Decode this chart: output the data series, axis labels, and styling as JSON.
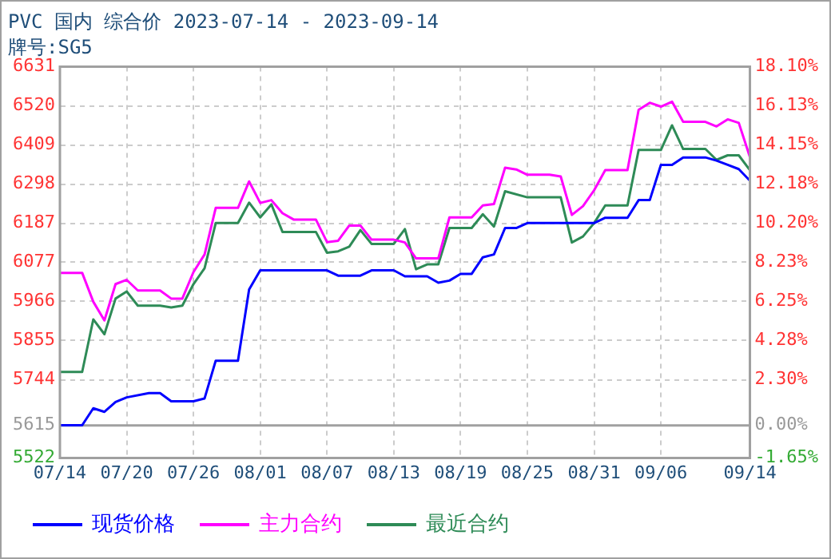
{
  "chart_data": {
    "type": "line",
    "title": "PVC 国内 综合价 2023-07-14 - 2023-09-14",
    "subtitle": "牌号:SG5",
    "xlim": [
      "2023-07-14",
      "2023-09-14"
    ],
    "xticks": [
      {
        "value": "2023-07-14",
        "label": "07/14"
      },
      {
        "value": "2023-07-20",
        "label": "07/20"
      },
      {
        "value": "2023-07-26",
        "label": "07/26"
      },
      {
        "value": "2023-08-01",
        "label": "08/01"
      },
      {
        "value": "2023-08-07",
        "label": "08/07"
      },
      {
        "value": "2023-08-13",
        "label": "08/13"
      },
      {
        "value": "2023-08-19",
        "label": "08/19"
      },
      {
        "value": "2023-08-25",
        "label": "08/25"
      },
      {
        "value": "2023-08-31",
        "label": "08/31"
      },
      {
        "value": "2023-09-06",
        "label": "09/06"
      },
      {
        "value": "2023-09-14",
        "label": "09/14"
      }
    ],
    "ylim": [
      5522,
      6631
    ],
    "yticks": [
      5522,
      5615,
      5744,
      5855,
      5966,
      6077,
      6187,
      6298,
      6409,
      6520,
      6631
    ],
    "y2lim": [
      -1.65,
      18.1
    ],
    "y2ticks": [
      {
        "value": -1.65,
        "label": "-1.65%"
      },
      {
        "value": 0,
        "label": "0.00%"
      },
      {
        "value": 2.3,
        "label": "2.30%"
      },
      {
        "value": 4.28,
        "label": "4.28%"
      },
      {
        "value": 6.25,
        "label": "6.25%"
      },
      {
        "value": 8.23,
        "label": "8.23%"
      },
      {
        "value": 10.2,
        "label": "10.20%"
      },
      {
        "value": 12.18,
        "label": "12.18%"
      },
      {
        "value": 14.15,
        "label": "14.15%"
      },
      {
        "value": 16.13,
        "label": "16.13%"
      },
      {
        "value": 18.1,
        "label": "18.10%"
      }
    ],
    "ref_lines": [
      {
        "axis": "y2",
        "value": 0,
        "color": "#a0a0a0"
      }
    ],
    "grid": true,
    "legend": "bottom",
    "marker": "none",
    "line_style": "solid",
    "series": [
      {
        "name": "现货价格",
        "color": "#0000ff",
        "x": [
          "2023-07-14",
          "2023-07-16",
          "2023-07-17",
          "2023-07-18",
          "2023-07-19",
          "2023-07-20",
          "2023-07-22",
          "2023-07-23",
          "2023-07-24",
          "2023-07-26",
          "2023-07-27",
          "2023-07-28",
          "2023-07-30",
          "2023-07-31",
          "2023-08-01",
          "2023-08-07",
          "2023-08-08",
          "2023-08-10",
          "2023-08-11",
          "2023-08-13",
          "2023-08-14",
          "2023-08-16",
          "2023-08-17",
          "2023-08-18",
          "2023-08-19",
          "2023-08-20",
          "2023-08-21",
          "2023-08-22",
          "2023-08-23",
          "2023-08-24",
          "2023-08-25",
          "2023-08-31",
          "2023-09-01",
          "2023-09-03",
          "2023-09-04",
          "2023-09-05",
          "2023-09-06",
          "2023-09-07",
          "2023-09-08",
          "2023-09-10",
          "2023-09-11",
          "2023-09-12",
          "2023-09-13",
          "2023-09-14"
        ],
        "values": [
          5615,
          5615,
          5663,
          5653,
          5681,
          5694,
          5706,
          5706,
          5683,
          5683,
          5691,
          5798,
          5798,
          6000,
          6054,
          6054,
          6039,
          6039,
          6054,
          6054,
          6037,
          6037,
          6019,
          6025,
          6044,
          6044,
          6091,
          6099,
          6174,
          6174,
          6188,
          6188,
          6203,
          6203,
          6253,
          6253,
          6353,
          6353,
          6374,
          6374,
          6365,
          6353,
          6341,
          6308
        ]
      },
      {
        "name": "主力合约",
        "color": "#ff00ff",
        "x": [
          "2023-07-14",
          "2023-07-16",
          "2023-07-17",
          "2023-07-18",
          "2023-07-19",
          "2023-07-20",
          "2023-07-21",
          "2023-07-23",
          "2023-07-24",
          "2023-07-25",
          "2023-07-26",
          "2023-07-27",
          "2023-07-28",
          "2023-07-30",
          "2023-07-31",
          "2023-08-01",
          "2023-08-02",
          "2023-08-03",
          "2023-08-04",
          "2023-08-06",
          "2023-08-07",
          "2023-08-08",
          "2023-08-09",
          "2023-08-10",
          "2023-08-11",
          "2023-08-13",
          "2023-08-14",
          "2023-08-15",
          "2023-08-17",
          "2023-08-18",
          "2023-08-20",
          "2023-08-21",
          "2023-08-22",
          "2023-08-23",
          "2023-08-24",
          "2023-08-25",
          "2023-08-27",
          "2023-08-28",
          "2023-08-29",
          "2023-08-30",
          "2023-08-31",
          "2023-09-01",
          "2023-09-03",
          "2023-09-04",
          "2023-09-05",
          "2023-09-06",
          "2023-09-07",
          "2023-09-08",
          "2023-09-10",
          "2023-09-11",
          "2023-09-12",
          "2023-09-13",
          "2023-09-14"
        ],
        "values": [
          6047,
          6047,
          5965,
          5912,
          6015,
          6027,
          5997,
          5997,
          5974,
          5974,
          6049,
          6099,
          6231,
          6231,
          6306,
          6245,
          6253,
          6216,
          6198,
          6198,
          6134,
          6138,
          6181,
          6181,
          6141,
          6141,
          6133,
          6088,
          6088,
          6204,
          6204,
          6238,
          6242,
          6345,
          6340,
          6325,
          6325,
          6320,
          6211,
          6236,
          6281,
          6338,
          6338,
          6509,
          6529,
          6518,
          6532,
          6475,
          6475,
          6462,
          6482,
          6472,
          6375
        ]
      },
      {
        "name": "最近合约",
        "color": "#2e8b57",
        "x": [
          "2023-07-14",
          "2023-07-16",
          "2023-07-17",
          "2023-07-18",
          "2023-07-19",
          "2023-07-20",
          "2023-07-21",
          "2023-07-23",
          "2023-07-24",
          "2023-07-25",
          "2023-07-26",
          "2023-07-27",
          "2023-07-28",
          "2023-07-30",
          "2023-07-31",
          "2023-08-01",
          "2023-08-02",
          "2023-08-03",
          "2023-08-06",
          "2023-08-07",
          "2023-08-08",
          "2023-08-09",
          "2023-08-10",
          "2023-08-11",
          "2023-08-13",
          "2023-08-14",
          "2023-08-15",
          "2023-08-16",
          "2023-08-17",
          "2023-08-18",
          "2023-08-20",
          "2023-08-21",
          "2023-08-22",
          "2023-08-23",
          "2023-08-25",
          "2023-08-28",
          "2023-08-29",
          "2023-08-30",
          "2023-08-31",
          "2023-09-01",
          "2023-09-03",
          "2023-09-04",
          "2023-09-06",
          "2023-09-07",
          "2023-09-08",
          "2023-09-10",
          "2023-09-11",
          "2023-09-12",
          "2023-09-13",
          "2023-09-14"
        ],
        "values": [
          5766,
          5766,
          5915,
          5873,
          5974,
          5994,
          5954,
          5954,
          5949,
          5954,
          6015,
          6060,
          6188,
          6188,
          6246,
          6204,
          6241,
          6163,
          6163,
          6104,
          6108,
          6121,
          6168,
          6129,
          6129,
          6171,
          6057,
          6071,
          6071,
          6174,
          6174,
          6213,
          6178,
          6278,
          6261,
          6261,
          6133,
          6150,
          6188,
          6238,
          6238,
          6395,
          6395,
          6465,
          6398,
          6398,
          6367,
          6380,
          6380,
          6338
        ]
      }
    ]
  }
}
